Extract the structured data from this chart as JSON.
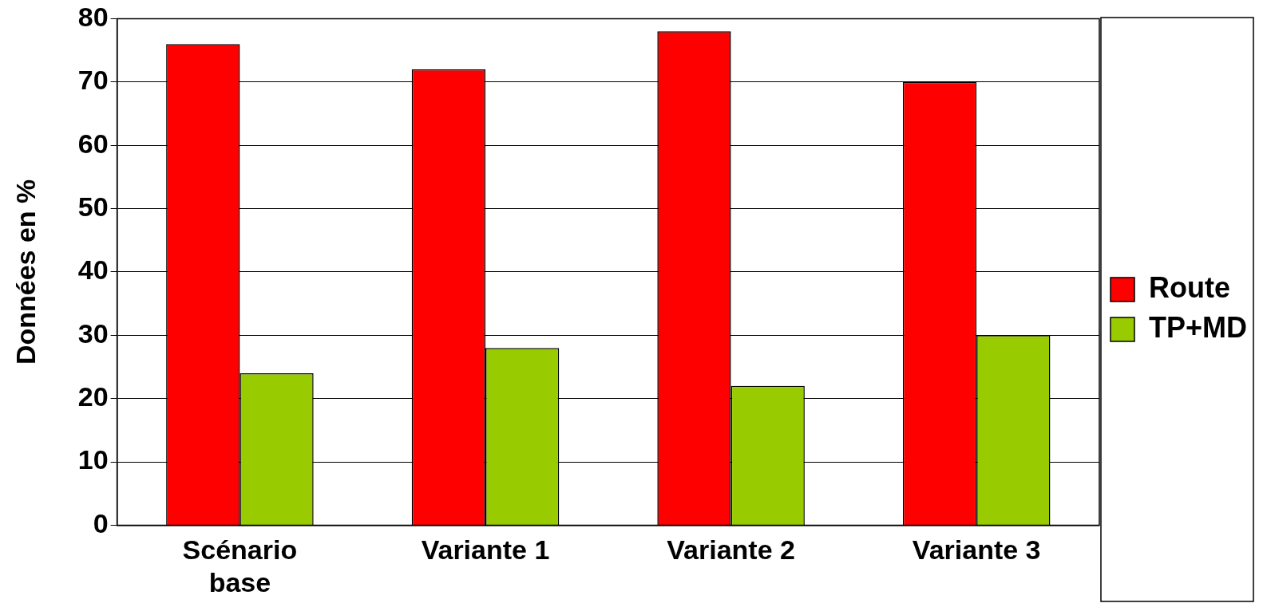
{
  "chart_data": {
    "type": "bar",
    "ylabel": "Données en %",
    "categories": [
      "Scénario base",
      "Variante 1",
      "Variante 2",
      "Variante 3"
    ],
    "series": [
      {
        "name": "Route",
        "color": "#ff0000",
        "values": [
          76,
          72,
          78,
          70
        ]
      },
      {
        "name": "TP+MD",
        "color": "#99cc00",
        "values": [
          24,
          28,
          22,
          30
        ]
      }
    ],
    "ylim": [
      0,
      80
    ],
    "yticks": [
      0,
      10,
      20,
      30,
      40,
      50,
      60,
      70,
      80
    ],
    "grid": "y",
    "legend": "right"
  }
}
